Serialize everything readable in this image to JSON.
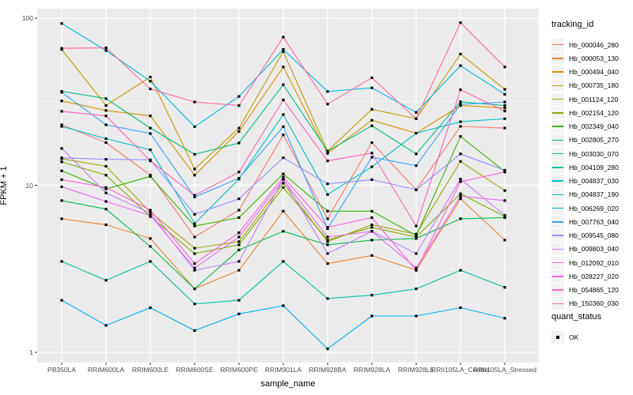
{
  "figure": {
    "background": "#FFFFFF",
    "panel_background": "#EBEBEB",
    "gridline_color": "#FFFFFF",
    "tick_text_color": "#4D4D4D",
    "point_color": "#000000"
  },
  "legend": {
    "tracking_title": "tracking_id",
    "quant_title": "quant_status",
    "quant_items": [
      {
        "label": "OK",
        "shape": "filled-square",
        "color": "#000000"
      }
    ]
  },
  "chart_data": {
    "type": "line",
    "title": "",
    "xlabel": "sample_name",
    "ylabel": "FPKM + 1",
    "y_scale": "log10",
    "ylim": [
      1,
      100
    ],
    "y_major_ticks": [
      1,
      10,
      100
    ],
    "y_minor_gridlines": [
      3.162,
      31.62
    ],
    "grid": true,
    "legend_position": "right",
    "point_shape": "black-square",
    "categories": [
      "PB350LA",
      "RRIM600LA",
      "RRIM600LE",
      "RRIM600SE",
      "RRIM600PE",
      "RRIM901LA",
      "RRIM928BA",
      "RRIM928LA",
      "RRIM928LE",
      "RRII105LA_Control",
      "RRII105LA_Stressed"
    ],
    "series": [
      {
        "name": "Hb_000046_280",
        "color": "#F8766D",
        "values": [
          23,
          18,
          11.5,
          4.9,
          7.1,
          20,
          6.3,
          18,
          9.4,
          22.5,
          22
        ]
      },
      {
        "name": "Hb_000053_130",
        "color": "#EA8331",
        "values": [
          6.3,
          5.8,
          4.8,
          2.4,
          3.1,
          7.0,
          3.4,
          3.8,
          3.1,
          8.3,
          4.7
        ]
      },
      {
        "name": "Hb_000494_040",
        "color": "#D89000",
        "values": [
          32,
          28,
          26,
          11.5,
          21,
          51,
          15.5,
          24.5,
          20.5,
          30,
          29
        ]
      },
      {
        "name": "Hb_000735_180",
        "color": "#C09B00",
        "values": [
          65,
          30,
          44.5,
          12.5,
          22,
          63,
          16,
          28.5,
          25,
          61,
          37.5
        ]
      },
      {
        "name": "Hb_001124_120",
        "color": "#A3A500",
        "values": [
          14.4,
          13,
          6.9,
          4.2,
          4.6,
          10.3,
          4.6,
          5.8,
          5.1,
          13.9,
          9.3
        ]
      },
      {
        "name": "Hb_002154_120",
        "color": "#7CAE00",
        "values": [
          13.8,
          11.5,
          6.5,
          3.9,
          4.4,
          9.7,
          4.7,
          5.6,
          4.9,
          8.9,
          6.5
        ]
      },
      {
        "name": "Hb_002349_040",
        "color": "#39B600",
        "values": [
          12.2,
          9.5,
          11.3,
          5.7,
          6.4,
          11.7,
          7.0,
          7.0,
          5.0,
          19.6,
          12.1
        ]
      },
      {
        "name": "Hb_002805_270",
        "color": "#00BB4E",
        "values": [
          8.1,
          7.2,
          4.3,
          2.4,
          4.1,
          5.3,
          4.4,
          4.7,
          4.8,
          6.3,
          6.4
        ]
      },
      {
        "name": "Hb_003030_070",
        "color": "#00BF7D",
        "values": [
          36.5,
          33,
          22,
          15.3,
          17.9,
          40,
          16,
          22.7,
          15.4,
          31.6,
          30
        ]
      },
      {
        "name": "Hb_004109_280",
        "color": "#00C1A3",
        "values": [
          3.5,
          2.7,
          3.5,
          1.95,
          2.05,
          3.5,
          2.1,
          2.2,
          2.4,
          3.1,
          2.45
        ]
      },
      {
        "name": "Hb_004837_030",
        "color": "#00BFC4",
        "values": [
          22.5,
          19,
          16.3,
          5.9,
          10.9,
          26.5,
          8.8,
          12.9,
          20.5,
          24,
          25
        ]
      },
      {
        "name": "Hb_004837_190",
        "color": "#00BAE0",
        "values": [
          93,
          64,
          42,
          22.4,
          34,
          65,
          36.4,
          38.3,
          27.3,
          52,
          35
        ]
      },
      {
        "name": "Hb_006269_020",
        "color": "#00B0F6",
        "values": [
          2.05,
          1.45,
          1.85,
          1.35,
          1.7,
          1.9,
          1.05,
          1.65,
          1.65,
          1.85,
          1.6
        ]
      },
      {
        "name": "Hb_007763_040",
        "color": "#35A2FF",
        "values": [
          36,
          23,
          20.4,
          8.5,
          11,
          22.4,
          5.5,
          14.7,
          13.1,
          30.5,
          31.5
        ]
      },
      {
        "name": "Hb_009545_080",
        "color": "#9590FF",
        "values": [
          14.6,
          14.3,
          14.2,
          6.7,
          8.3,
          14.6,
          10.2,
          10.8,
          9.4,
          15.4,
          12.3
        ]
      },
      {
        "name": "Hb_009803_040",
        "color": "#C77CFF",
        "values": [
          16.6,
          9.0,
          6.8,
          3.1,
          3.5,
          10.9,
          3.9,
          5.3,
          3.9,
          10.9,
          6.6
        ]
      },
      {
        "name": "Hb_012092_010",
        "color": "#E76BF3",
        "values": [
          9.8,
          8.0,
          6.6,
          3.2,
          4.9,
          10.8,
          4.9,
          5.3,
          3.2,
          8.6,
          8.1
        ]
      },
      {
        "name": "Hb_028227_020",
        "color": "#FA62DB",
        "values": [
          10.8,
          9.7,
          7.1,
          3.4,
          5.2,
          11.2,
          5.6,
          6.4,
          3.1,
          10.5,
          12.0
        ]
      },
      {
        "name": "Hb_054865_120",
        "color": "#FF62BC",
        "values": [
          27.7,
          26,
          14,
          8.7,
          12,
          32.4,
          14,
          15.6,
          5.7,
          37.3,
          27.8
        ]
      },
      {
        "name": "Hb_150360_030",
        "color": "#FF6A98",
        "values": [
          66,
          66.5,
          37.7,
          31.5,
          30,
          77,
          30.6,
          44,
          25,
          94,
          51
        ]
      }
    ]
  }
}
